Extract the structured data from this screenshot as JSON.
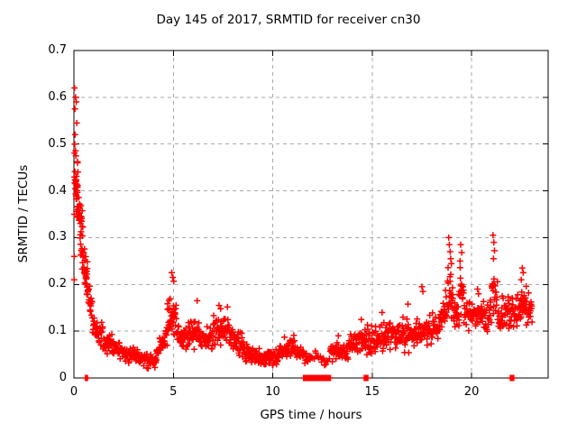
{
  "window": {
    "background": "#ffffff"
  },
  "chart_data": {
    "type": "scatter",
    "title": "Day 145 of 2017, SRMTID for receiver cn30",
    "xlabel": "GPS time / hours",
    "ylabel": "SRMTID / TECUs",
    "xlim": [
      0,
      23.85
    ],
    "ylim": [
      0,
      0.7
    ],
    "xticks": [
      0,
      5,
      10,
      15,
      20
    ],
    "yticks": [
      0,
      0.1,
      0.2,
      0.3,
      0.4,
      0.5,
      0.6,
      0.7
    ],
    "grid": {
      "visible": true,
      "color": "#a8a8a8",
      "dash": "4,4"
    },
    "legend": "none",
    "axis_color": "#000000",
    "marker": {
      "shape": "plus",
      "color": "#ff0000",
      "size": 7
    },
    "series_name": "SRMTID",
    "seed": 1145,
    "peaks": [
      [
        0.03,
        0.62
      ],
      [
        0.08,
        0.6
      ],
      [
        0.12,
        0.59
      ],
      [
        0.05,
        0.575
      ],
      [
        0.14,
        0.545
      ],
      [
        0.06,
        0.52
      ],
      [
        0.04,
        0.5
      ],
      [
        0.1,
        0.475
      ],
      [
        0.18,
        0.46
      ],
      [
        0.2,
        0.44
      ],
      [
        0.02,
        0.35
      ],
      [
        0.02,
        0.26
      ],
      [
        0.01,
        0.21
      ],
      [
        4.92,
        0.225
      ],
      [
        4.97,
        0.215
      ],
      [
        5.02,
        0.207
      ],
      [
        6.2,
        0.165
      ],
      [
        7.3,
        0.155
      ],
      [
        7.38,
        0.148
      ],
      [
        7.72,
        0.152
      ],
      [
        13.3,
        0.09
      ],
      [
        14.45,
        0.125
      ],
      [
        15.5,
        0.14
      ],
      [
        16.55,
        0.13
      ],
      [
        16.8,
        0.158
      ],
      [
        17.5,
        0.195
      ],
      [
        17.55,
        0.185
      ],
      [
        18.85,
        0.3
      ],
      [
        18.88,
        0.285
      ],
      [
        18.92,
        0.27
      ],
      [
        18.95,
        0.255
      ],
      [
        19.45,
        0.285
      ],
      [
        19.5,
        0.268
      ],
      [
        19.42,
        0.25
      ],
      [
        20.3,
        0.19
      ],
      [
        20.35,
        0.18
      ],
      [
        21.08,
        0.305
      ],
      [
        21.12,
        0.29
      ],
      [
        21.15,
        0.272
      ],
      [
        21.1,
        0.255
      ],
      [
        22.55,
        0.235
      ],
      [
        22.6,
        0.225
      ],
      [
        22.5,
        0.21
      ]
    ],
    "segments": [
      {
        "x0": 0.02,
        "x1": 0.2,
        "n": 22,
        "y0": 0.46,
        "y1": 0.4,
        "spread": 0.1
      },
      {
        "x0": 0.1,
        "x1": 0.45,
        "n": 30,
        "y0": 0.4,
        "y1": 0.32,
        "spread": 0.055
      },
      {
        "x0": 0.3,
        "x1": 0.7,
        "n": 30,
        "y0": 0.3,
        "y1": 0.21,
        "spread": 0.05
      },
      {
        "x0": 0.55,
        "x1": 0.95,
        "n": 28,
        "y0": 0.21,
        "y1": 0.14,
        "spread": 0.05
      },
      {
        "x0": 0.95,
        "x1": 1.45,
        "n": 32,
        "y0": 0.115,
        "y1": 0.09,
        "spread": 0.035
      },
      {
        "x0": 1.45,
        "x1": 2.3,
        "n": 52,
        "y0": 0.072,
        "y1": 0.06,
        "spread": 0.03
      },
      {
        "x0": 2.3,
        "x1": 3.3,
        "n": 60,
        "y0": 0.055,
        "y1": 0.045,
        "spread": 0.025
      },
      {
        "x0": 3.3,
        "x1": 4.15,
        "n": 52,
        "y0": 0.04,
        "y1": 0.035,
        "spread": 0.02
      },
      {
        "x0": 4.15,
        "x1": 4.7,
        "n": 32,
        "y0": 0.05,
        "y1": 0.095,
        "spread": 0.032
      },
      {
        "x0": 4.7,
        "x1": 5.15,
        "n": 36,
        "y0": 0.13,
        "y1": 0.125,
        "spread": 0.065
      },
      {
        "x0": 5.15,
        "x1": 5.7,
        "n": 34,
        "y0": 0.095,
        "y1": 0.08,
        "spread": 0.035
      },
      {
        "x0": 5.7,
        "x1": 6.35,
        "n": 40,
        "y0": 0.1,
        "y1": 0.095,
        "spread": 0.045
      },
      {
        "x0": 6.35,
        "x1": 7.0,
        "n": 40,
        "y0": 0.082,
        "y1": 0.078,
        "spread": 0.035
      },
      {
        "x0": 7.0,
        "x1": 7.95,
        "n": 58,
        "y0": 0.1,
        "y1": 0.095,
        "spread": 0.045
      },
      {
        "x0": 7.95,
        "x1": 8.6,
        "n": 40,
        "y0": 0.08,
        "y1": 0.07,
        "spread": 0.04
      },
      {
        "x0": 8.6,
        "x1": 9.4,
        "n": 48,
        "y0": 0.052,
        "y1": 0.045,
        "spread": 0.025
      },
      {
        "x0": 9.4,
        "x1": 10.3,
        "n": 54,
        "y0": 0.04,
        "y1": 0.042,
        "spread": 0.022
      },
      {
        "x0": 10.3,
        "x1": 11.2,
        "n": 54,
        "y0": 0.06,
        "y1": 0.062,
        "spread": 0.032
      },
      {
        "x0": 11.2,
        "x1": 11.8,
        "n": 30,
        "y0": 0.052,
        "y1": 0.045,
        "spread": 0.022
      },
      {
        "x0": 11.8,
        "x1": 12.9,
        "n": 22,
        "y0": 0.045,
        "y1": 0.042,
        "spread": 0.02
      },
      {
        "x0": 12.9,
        "x1": 13.8,
        "n": 52,
        "y0": 0.055,
        "y1": 0.058,
        "spread": 0.026
      },
      {
        "x0": 13.8,
        "x1": 14.6,
        "n": 46,
        "y0": 0.07,
        "y1": 0.08,
        "spread": 0.035
      },
      {
        "x0": 14.6,
        "x1": 15.3,
        "n": 40,
        "y0": 0.08,
        "y1": 0.082,
        "spread": 0.04
      },
      {
        "x0": 15.3,
        "x1": 16.3,
        "n": 58,
        "y0": 0.085,
        "y1": 0.088,
        "spread": 0.042
      },
      {
        "x0": 16.3,
        "x1": 17.3,
        "n": 58,
        "y0": 0.09,
        "y1": 0.095,
        "spread": 0.045
      },
      {
        "x0": 17.3,
        "x1": 18.4,
        "n": 64,
        "y0": 0.1,
        "y1": 0.11,
        "spread": 0.045
      },
      {
        "x0": 18.4,
        "x1": 18.78,
        "n": 24,
        "y0": 0.13,
        "y1": 0.15,
        "spread": 0.055
      },
      {
        "x0": 18.78,
        "x1": 19.05,
        "n": 22,
        "y0": 0.19,
        "y1": 0.185,
        "spread": 0.08
      },
      {
        "x0": 19.05,
        "x1": 19.38,
        "n": 20,
        "y0": 0.14,
        "y1": 0.135,
        "spread": 0.05
      },
      {
        "x0": 19.38,
        "x1": 19.6,
        "n": 16,
        "y0": 0.19,
        "y1": 0.18,
        "spread": 0.07
      },
      {
        "x0": 19.6,
        "x1": 20.6,
        "n": 58,
        "y0": 0.135,
        "y1": 0.14,
        "spread": 0.05
      },
      {
        "x0": 20.6,
        "x1": 21.0,
        "n": 24,
        "y0": 0.13,
        "y1": 0.14,
        "spread": 0.05
      },
      {
        "x0": 21.0,
        "x1": 21.3,
        "n": 20,
        "y0": 0.19,
        "y1": 0.185,
        "spread": 0.065
      },
      {
        "x0": 21.3,
        "x1": 22.4,
        "n": 62,
        "y0": 0.13,
        "y1": 0.14,
        "spread": 0.055
      },
      {
        "x0": 22.4,
        "x1": 22.75,
        "n": 24,
        "y0": 0.155,
        "y1": 0.16,
        "spread": 0.055
      },
      {
        "x0": 22.75,
        "x1": 23.05,
        "n": 20,
        "y0": 0.14,
        "y1": 0.15,
        "spread": 0.05
      }
    ],
    "zero_runs": [
      {
        "x0": 0.58,
        "x1": 0.68,
        "n": 6
      },
      {
        "x0": 11.55,
        "x1": 11.78,
        "n": 10
      },
      {
        "x0": 11.85,
        "x1": 12.62,
        "n": 34
      },
      {
        "x0": 12.68,
        "x1": 12.76,
        "n": 4
      },
      {
        "x0": 12.82,
        "x1": 12.9,
        "n": 4
      },
      {
        "x0": 14.6,
        "x1": 14.78,
        "n": 8
      },
      {
        "x0": 21.95,
        "x1": 22.12,
        "n": 7
      }
    ]
  }
}
